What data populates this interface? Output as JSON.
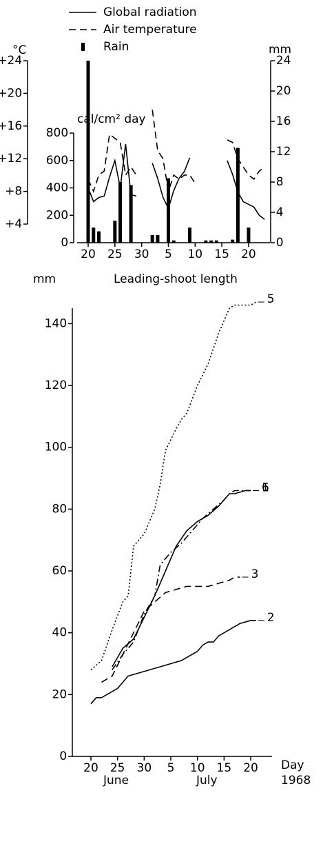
{
  "chart_data": [
    {
      "type": "combo",
      "legend": "top",
      "y_label": "°C",
      "y2_label": "mm",
      "y3_label": "cal/cm² day",
      "xlim": [
        20,
        54
      ],
      "xticks": [
        20,
        25,
        30,
        {
          "value": 35,
          "label": "5"
        },
        {
          "value": 40,
          "label": "10"
        },
        {
          "value": 45,
          "label": "15"
        },
        {
          "value": 50,
          "label": "20"
        }
      ],
      "ylim": [
        4,
        24
      ],
      "yticks": [
        {
          "value": 4,
          "label": "+4"
        },
        {
          "value": 8,
          "label": "+8"
        },
        {
          "value": 12,
          "label": "+12"
        },
        {
          "value": 16,
          "label": "+16"
        },
        {
          "value": 20,
          "label": "+20"
        },
        {
          "value": 24,
          "label": "+24"
        }
      ],
      "y2lim": [
        0,
        24
      ],
      "y2ticks": [
        0,
        4,
        8,
        12,
        16,
        20,
        24
      ],
      "y3lim": [
        0,
        800
      ],
      "y3ticks": [
        0,
        200,
        400,
        600,
        800
      ],
      "series": [
        {
          "name": "Global radiation",
          "type": "line",
          "dash": "solid",
          "color": "#000000",
          "axis": "y3",
          "x": [
            20,
            21,
            22,
            23,
            24,
            25,
            26,
            27,
            28,
            29,
            30,
            32,
            33,
            34,
            35,
            36,
            37,
            38,
            39,
            40,
            46,
            47,
            48,
            49,
            50,
            51,
            52,
            53
          ],
          "values": [
            400,
            300,
            330,
            340,
            480,
            600,
            400,
            720,
            350,
            340,
            null,
            580,
            470,
            330,
            250,
            380,
            470,
            520,
            620,
            null,
            600,
            500,
            370,
            300,
            280,
            260,
            200,
            170
          ]
        },
        {
          "name": "Air temperature",
          "type": "line",
          "dash": "dashed",
          "color": "#000000",
          "axis": "y",
          "x": [
            20,
            21,
            22,
            23,
            24,
            25,
            26,
            27,
            28,
            29,
            30,
            32,
            33,
            34,
            35,
            36,
            37,
            38,
            39,
            40,
            41,
            46,
            47,
            48,
            49,
            50,
            51,
            52,
            53
          ],
          "values": [
            9.5,
            8,
            10,
            10.5,
            15,
            14.5,
            14,
            10,
            11,
            10,
            null,
            18,
            13,
            12,
            8,
            10,
            9.5,
            10,
            10,
            9,
            null,
            14.3,
            14,
            12,
            11,
            10,
            9.5,
            10.5,
            11
          ]
        },
        {
          "name": "Rain",
          "type": "bar",
          "color": "#000000",
          "axis": "y2",
          "x": [
            20,
            21,
            22,
            25,
            26,
            28,
            32,
            33,
            35,
            36,
            39,
            42,
            43,
            44,
            47,
            48,
            50
          ],
          "values": [
            24,
            2,
            1.5,
            2.9,
            8,
            7.6,
            1,
            1,
            8.5,
            0.3,
            2,
            0.3,
            0.3,
            0.3,
            0.4,
            12.5,
            2
          ]
        }
      ]
    },
    {
      "type": "line",
      "title": "Leading-shoot length",
      "y_label": "mm",
      "x_label": "Day",
      "x_sublabels": [
        "June",
        "July",
        "1968"
      ],
      "xlim": [
        20,
        54
      ],
      "xticks": [
        20,
        25,
        30,
        {
          "value": 35,
          "label": "5"
        },
        {
          "value": 40,
          "label": "10"
        },
        {
          "value": 45,
          "label": "15"
        },
        {
          "value": 50,
          "label": "20"
        }
      ],
      "ylim": [
        0,
        145
      ],
      "yticks": [
        0,
        20,
        40,
        60,
        80,
        100,
        120,
        140
      ],
      "series": [
        {
          "name": "5",
          "dash": "dotted",
          "color": "#000000",
          "x": [
            20,
            22,
            24,
            26,
            27,
            28,
            30,
            32,
            33,
            34,
            36,
            37,
            38,
            40,
            42,
            44,
            46,
            47,
            50,
            51
          ],
          "values": [
            28,
            31,
            41,
            50,
            52,
            68,
            72,
            80,
            88,
            99,
            106,
            109,
            111,
            120,
            127,
            137,
            145,
            146,
            146,
            147
          ]
        },
        {
          "name": "6",
          "dash": "dashdot",
          "color": "#000000",
          "x": [
            24,
            26,
            28,
            30,
            32,
            33,
            35,
            37,
            39,
            41,
            43,
            45,
            46,
            47,
            48,
            50
          ],
          "values": [
            28,
            33,
            37,
            46,
            52,
            62,
            66,
            69,
            73,
            77,
            80,
            83,
            85,
            86,
            86,
            86
          ]
        },
        {
          "name": "1",
          "dash": "solid",
          "color": "#000000",
          "x": [
            24,
            26,
            28,
            30,
            32,
            34,
            36,
            38,
            40,
            42,
            44,
            46,
            47,
            49,
            50
          ],
          "values": [
            29,
            35,
            38,
            45,
            52,
            60,
            68,
            73,
            76,
            78,
            81,
            85,
            85,
            86,
            86
          ]
        },
        {
          "name": "3",
          "dash": "dashed",
          "color": "#000000",
          "x": [
            22,
            24,
            26,
            28,
            30,
            32,
            34,
            36,
            38,
            40,
            42,
            44,
            46,
            47,
            48
          ],
          "values": [
            24,
            26,
            33,
            40,
            47,
            50,
            53,
            54,
            55,
            55,
            55,
            56,
            57,
            58,
            58
          ]
        },
        {
          "name": "2",
          "dash": "solid",
          "color": "#000000",
          "x": [
            20,
            21,
            22,
            23,
            24,
            25,
            27,
            29,
            31,
            33,
            35,
            37,
            38,
            39,
            40,
            41,
            42,
            43,
            44,
            46,
            48,
            50,
            51
          ],
          "values": [
            17,
            19,
            19,
            20,
            21,
            22,
            26,
            27,
            28,
            29,
            30,
            31,
            32,
            33,
            34,
            36,
            37,
            37,
            39,
            41,
            43,
            44,
            44
          ]
        }
      ]
    }
  ]
}
